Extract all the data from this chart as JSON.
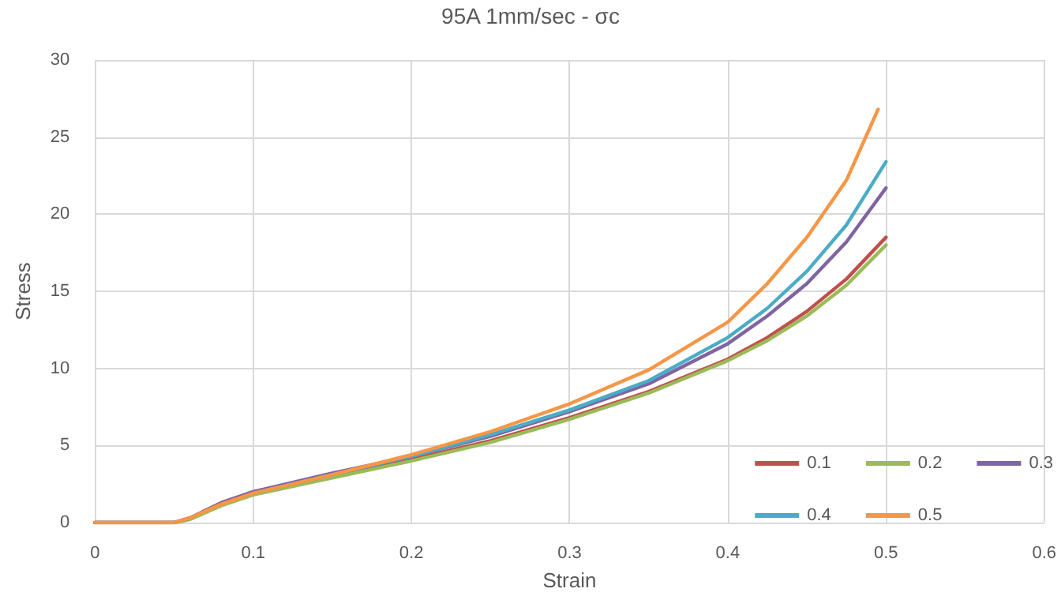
{
  "chart_data": {
    "type": "line",
    "title": "95A 1mm/sec - σc",
    "xlabel": "Strain",
    "ylabel": "Stress",
    "xlim": [
      0,
      0.6
    ],
    "xticks": [
      0,
      0.1,
      0.2,
      0.3,
      0.4,
      0.5,
      0.6
    ],
    "ylim": [
      0,
      30
    ],
    "yticks": [
      0,
      5,
      10,
      15,
      20,
      25,
      30
    ],
    "grid": true,
    "legend": "bottom right",
    "marker": "none",
    "line_style": "solid",
    "x": [
      0,
      0.05,
      0.06,
      0.08,
      0.1,
      0.15,
      0.2,
      0.25,
      0.3,
      0.35,
      0.4,
      0.425,
      0.45,
      0.475,
      0.5
    ],
    "series": [
      {
        "name": "0.1",
        "color": "#c0504d",
        "values": [
          0,
          0,
          0.3,
          1.2,
          1.9,
          3.0,
          4.1,
          5.3,
          6.8,
          8.5,
          10.6,
          12.0,
          13.7,
          15.8,
          18.5
        ]
      },
      {
        "name": "0.2",
        "color": "#9bbb59",
        "values": [
          0,
          0,
          0.2,
          1.1,
          1.8,
          2.9,
          4.0,
          5.2,
          6.7,
          8.4,
          10.5,
          11.8,
          13.4,
          15.4,
          18.0
        ]
      },
      {
        "name": "0.3",
        "color": "#8064a2",
        "values": [
          0,
          0,
          0.3,
          1.3,
          2.0,
          3.2,
          4.3,
          5.6,
          7.2,
          9.0,
          11.6,
          13.4,
          15.5,
          18.2,
          21.7
        ]
      },
      {
        "name": "0.4",
        "color": "#4bacc6",
        "values": [
          null,
          null,
          null,
          null,
          1.9,
          3.1,
          4.3,
          5.7,
          7.3,
          9.2,
          12.0,
          13.9,
          16.3,
          19.3,
          23.4
        ]
      },
      {
        "name": "0.5",
        "color": "#f79646",
        "x": [
          0,
          0.05,
          0.06,
          0.08,
          0.1,
          0.15,
          0.2,
          0.25,
          0.3,
          0.35,
          0.4,
          0.425,
          0.45,
          0.475,
          0.495
        ],
        "values": [
          0,
          0,
          0.3,
          1.2,
          1.9,
          3.1,
          4.4,
          5.9,
          7.7,
          9.9,
          13.0,
          15.5,
          18.5,
          22.2,
          26.8
        ]
      }
    ]
  }
}
